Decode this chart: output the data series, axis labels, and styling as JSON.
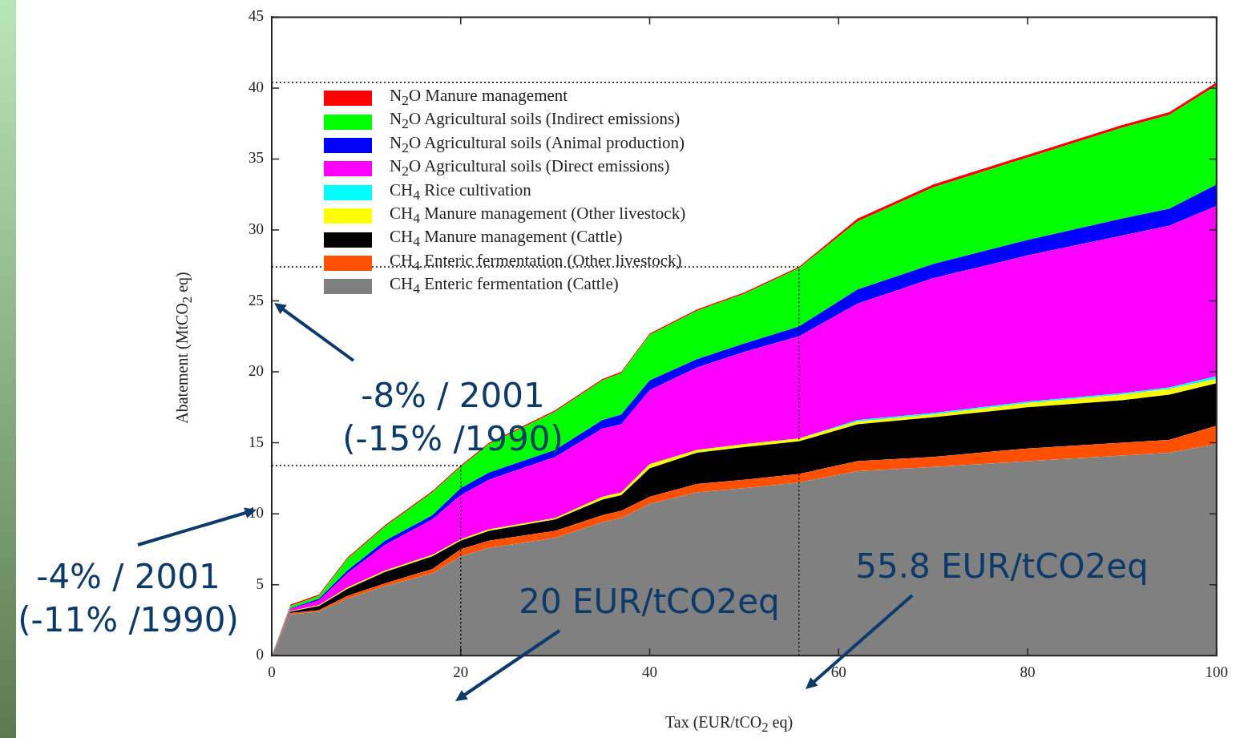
{
  "chart_data": {
    "type": "area",
    "stacked": true,
    "xlabel": "Tax (EUR/tCO$_{2}$ eq)",
    "ylabel": "Abatement (MtCO$_{2}$ eq)",
    "x": [
      0,
      2,
      5,
      8,
      12,
      17,
      20,
      23,
      30,
      35,
      37,
      40,
      45,
      50,
      55.8,
      62,
      70,
      80,
      90,
      95,
      100
    ],
    "xlim": [
      0,
      100
    ],
    "xticks": [
      0,
      20,
      40,
      60,
      80,
      100
    ],
    "ylim": [
      0,
      45
    ],
    "yticks": [
      0,
      5,
      10,
      15,
      20,
      25,
      30,
      35,
      40,
      45
    ],
    "grid": false,
    "legend": "top left",
    "series": [
      {
        "name": "CH$_{4}$ Enteric fermentation (Cattle)",
        "color": "#808080",
        "values": [
          0,
          2.9,
          3.1,
          4.0,
          4.9,
          5.8,
          7.0,
          7.6,
          8.3,
          9.4,
          9.7,
          10.7,
          11.5,
          11.8,
          12.2,
          13.0,
          13.3,
          13.7,
          14.1,
          14.3,
          14.9
        ]
      },
      {
        "name": "CH$_{4}$ Enteric fermentation (Other livestock)",
        "color": "#ff4f00",
        "values": [
          0,
          0.1,
          0.1,
          0.2,
          0.2,
          0.3,
          0.5,
          0.5,
          0.5,
          0.5,
          0.5,
          0.5,
          0.6,
          0.6,
          0.6,
          0.7,
          0.7,
          0.9,
          0.9,
          0.9,
          1.3
        ]
      },
      {
        "name": "CH$_{4}$ Manure management (Cattle)",
        "color": "#000000",
        "values": [
          0,
          0.1,
          0.3,
          0.5,
          0.8,
          0.9,
          0.6,
          0.7,
          0.8,
          1.1,
          1.1,
          2.0,
          2.2,
          2.3,
          2.3,
          2.6,
          2.8,
          2.9,
          3.0,
          3.2,
          3.0
        ]
      },
      {
        "name": "CH$_{4}$ Manure management (Other livestock)",
        "color": "#ffff00",
        "values": [
          0,
          0.05,
          0.05,
          0.1,
          0.1,
          0.1,
          0.1,
          0.1,
          0.1,
          0.2,
          0.2,
          0.3,
          0.2,
          0.2,
          0.2,
          0.2,
          0.2,
          0.3,
          0.4,
          0.4,
          0.3
        ]
      },
      {
        "name": "CH$_{4}$ Rice cultivation",
        "color": "#00ffff",
        "values": [
          0,
          0,
          0,
          0,
          0,
          0,
          0,
          0,
          0,
          0,
          0,
          0,
          0,
          0,
          0,
          0.1,
          0.1,
          0.1,
          0.1,
          0.1,
          0.2
        ]
      },
      {
        "name": "N$_{2}$O Agricultural soils (Direct emissions)",
        "color": "#ff00ff",
        "values": [
          0,
          0.15,
          0.35,
          1.0,
          1.8,
          2.5,
          3.1,
          3.5,
          4.3,
          4.8,
          4.8,
          5.2,
          5.8,
          6.5,
          7.2,
          8.2,
          9.5,
          10.3,
          11.1,
          11.4,
          12.0
        ]
      },
      {
        "name": "N$_{2}$O Agricultural soils (Animal production)",
        "color": "#0000ff",
        "values": [
          0,
          0.05,
          0.1,
          0.2,
          0.3,
          0.3,
          0.5,
          0.5,
          0.5,
          0.6,
          0.7,
          0.7,
          0.6,
          0.6,
          0.7,
          1.0,
          1.0,
          1.1,
          1.2,
          1.2,
          1.5
        ]
      },
      {
        "name": "N$_{2}$O Agricultural soils (Indirect emissions)",
        "color": "#00ff00",
        "values": [
          0,
          0.15,
          0.2,
          0.8,
          1.0,
          1.6,
          1.5,
          2.0,
          2.7,
          2.8,
          2.9,
          3.2,
          3.4,
          3.5,
          4.1,
          4.8,
          5.4,
          5.8,
          6.4,
          6.6,
          7.0
        ]
      },
      {
        "name": "N$_{2}$O Manure management",
        "color": "#ff0000",
        "values": [
          0,
          0.1,
          0.1,
          0.1,
          0.1,
          0.1,
          0.1,
          0.1,
          0.1,
          0.1,
          0.1,
          0.1,
          0.1,
          0.1,
          0.1,
          0.2,
          0.2,
          0.2,
          0.2,
          0.2,
          0.2
        ]
      }
    ],
    "ref_lines": [
      {
        "axis": "y",
        "value": 40.4,
        "color": "#000000",
        "line_style": "dotted"
      },
      {
        "axis": "y",
        "value": 27.4,
        "color": "#000000",
        "line_style": "dotted"
      },
      {
        "axis": "y",
        "value": 13.4,
        "color": "#000000",
        "line_style": "dotted"
      },
      {
        "axis": "x",
        "value": 20,
        "color": "#000000",
        "line_style": "dotted"
      },
      {
        "axis": "x",
        "value": 55.8,
        "color": "#000000",
        "line_style": "dotted"
      }
    ],
    "annotations": [
      "-8% / 2001 (-15% /1990)",
      "-4% / 2001 (-11% /1990)",
      "20 EUR/tCO2eq",
      "55.8 EUR/tCO2eq"
    ]
  }
}
